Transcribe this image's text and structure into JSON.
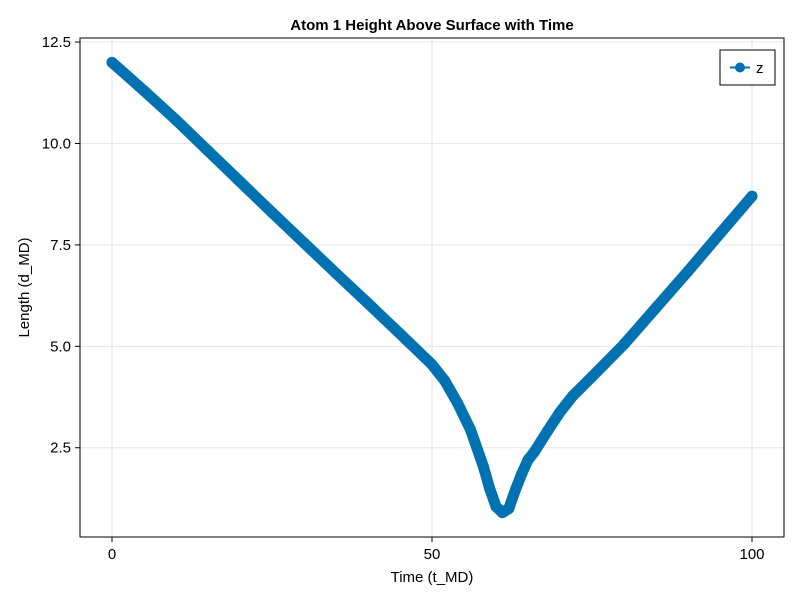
{
  "chart_data": {
    "type": "line",
    "title": "Atom 1 Height Above Surface with Time",
    "xlabel": "Time (t_MD)",
    "ylabel": "Length (d_MD)",
    "xlim": [
      -5,
      105
    ],
    "ylim": [
      0.3,
      12.6
    ],
    "xticks": [
      0,
      50,
      100
    ],
    "xtick_labels": [
      "0",
      "50",
      "100"
    ],
    "yticks": [
      2.5,
      5.0,
      7.5,
      10.0,
      12.5
    ],
    "ytick_labels": [
      "2.5",
      "5.0",
      "7.5",
      "10.0",
      "12.5"
    ],
    "grid": true,
    "legend_position": "top-right",
    "series": [
      {
        "name": "z",
        "color": "#0072b2",
        "marker": "circle",
        "x": [
          0,
          5,
          10,
          15,
          20,
          25,
          30,
          35,
          40,
          45,
          50,
          52,
          54,
          56,
          58,
          59,
          60,
          61,
          62,
          63,
          64,
          65,
          66,
          67,
          68,
          70,
          72,
          75,
          80,
          85,
          90,
          95,
          100
        ],
        "y": [
          12.0,
          11.3,
          10.58,
          9.82,
          9.06,
          8.3,
          7.55,
          6.8,
          6.06,
          5.31,
          4.55,
          4.15,
          3.6,
          2.95,
          2.05,
          1.5,
          1.05,
          0.9,
          1.0,
          1.45,
          1.85,
          2.2,
          2.4,
          2.65,
          2.9,
          3.38,
          3.78,
          4.25,
          5.05,
          5.95,
          6.85,
          7.78,
          8.7
        ]
      }
    ]
  }
}
